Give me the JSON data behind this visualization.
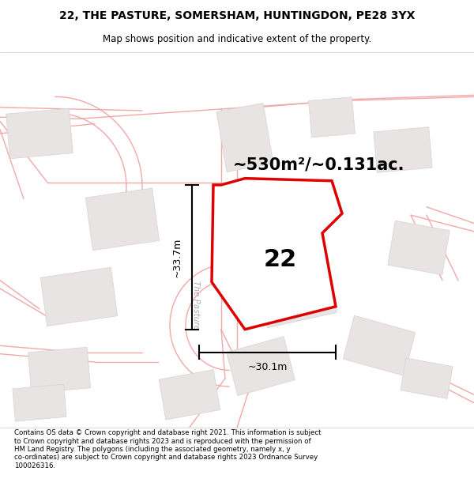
{
  "title_line1": "22, THE PASTURE, SOMERSHAM, HUNTINGDON, PE28 3YX",
  "title_line2": "Map shows position and indicative extent of the property.",
  "area_text": "~530m²/~0.131ac.",
  "label_number": "22",
  "dim_width": "~30.1m",
  "dim_height": "~33.7m",
  "footer_text": "Contains OS data © Crown copyright and database right 2021. This information is subject to Crown copyright and database rights 2023 and is reproduced with the permission of HM Land Registry. The polygons (including the associated geometry, namely x, y co-ordinates) are subject to Crown copyright and database rights 2023 Ordnance Survey 100026316.",
  "bg_color": "#ffffff",
  "map_bg": "#ffffff",
  "road_color": "#f0a8a8",
  "road_lw": 1.0,
  "building_color": "#e8e4e4",
  "building_edge": "#d8d0d0",
  "red_color": "#dd0000",
  "figsize": [
    6.0,
    6.25
  ],
  "dpi": 100,
  "title_fontsize": 10,
  "subtitle_fontsize": 8.5,
  "area_fontsize": 15,
  "number_fontsize": 22,
  "dim_fontsize": 9,
  "footer_fontsize": 6.2
}
